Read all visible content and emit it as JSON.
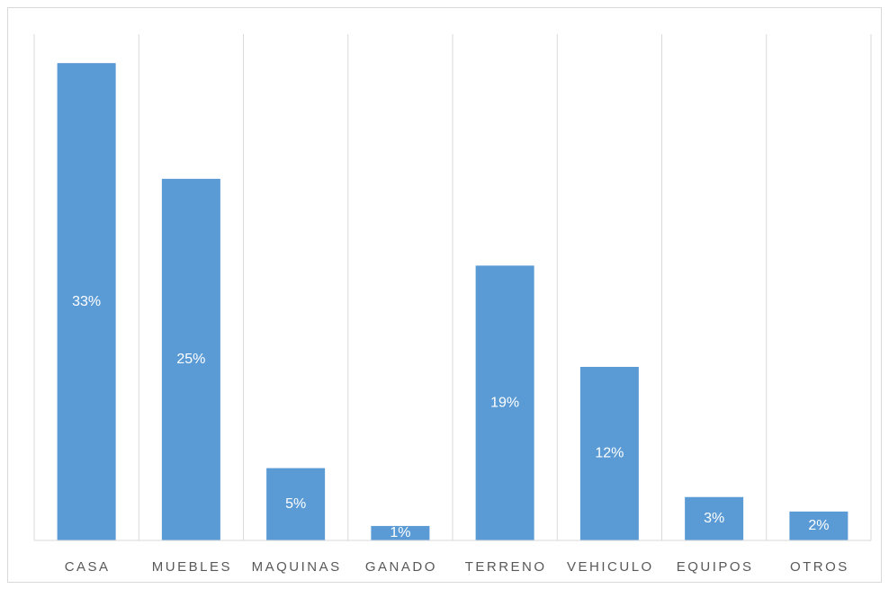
{
  "chart_data": {
    "type": "bar",
    "categories": [
      "CASA",
      "MUEBLES",
      "MAQUINAS",
      "GANADO",
      "TERRENO",
      "VEHICULO",
      "EQUIPOS",
      "OTROS"
    ],
    "values": [
      33,
      25,
      5,
      1,
      19,
      12,
      3,
      2
    ],
    "value_labels": [
      "33%",
      "25%",
      "5%",
      "1%",
      "19%",
      "12%",
      "3%",
      "2%"
    ],
    "color": "#5b9bd5",
    "ylim": [
      0,
      35
    ]
  }
}
